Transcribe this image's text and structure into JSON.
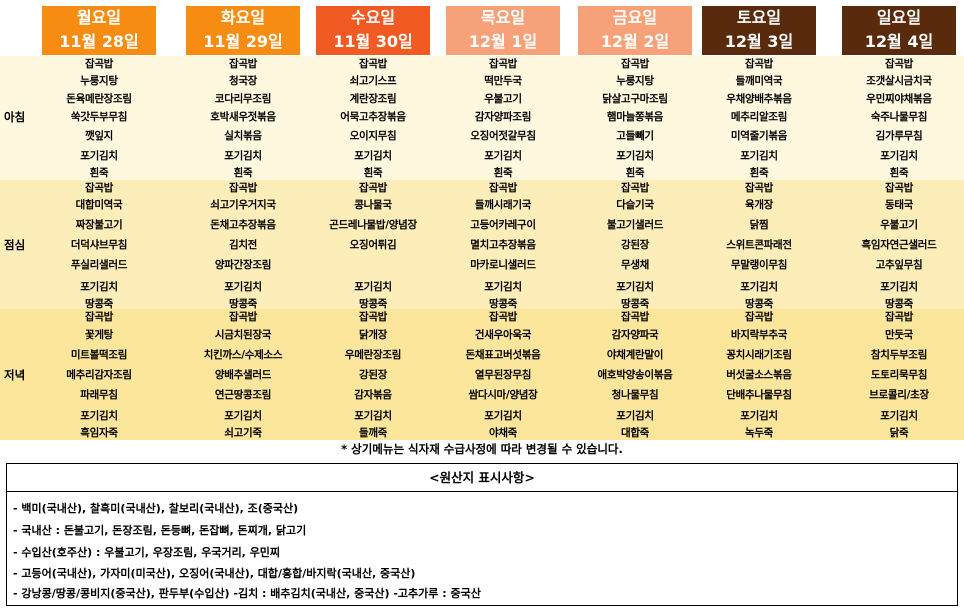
{
  "days": [
    {
      "day": "월요일",
      "date": "11월 28일",
      "color": "#F78C12"
    },
    {
      "day": "화요일",
      "date": "11월 29일",
      "color": "#F78C12"
    },
    {
      "day": "수요일",
      "date": "11월 30일",
      "color": "#F15A22"
    },
    {
      "day": "목요일",
      "date": "12월 1일",
      "color": "#F7A178"
    },
    {
      "day": "금요일",
      "date": "12월 2일",
      "color": "#F7A178"
    },
    {
      "day": "토요일",
      "date": "12월 3일",
      "color": "#5A2A0C"
    },
    {
      "day": "일요일",
      "date": "12월 4일",
      "color": "#5A2A0C"
    }
  ],
  "meals": [
    {
      "label": "아침",
      "color": "#FEF8DF",
      "items": [
        [
          "잡곡밥",
          "누룽지탕",
          "돈육메란장조림",
          "쑥갓두부무침",
          "깻잎지",
          "포기김치",
          "흰죽"
        ],
        [
          "잡곡밥",
          "청국장",
          "코다리무조림",
          "호박새우젓볶음",
          "실치볶음",
          "포기김치",
          "흰죽"
        ],
        [
          "잡곡밥",
          "쇠고기스프",
          "계란장조림",
          "어묵고추장볶음",
          "오이지무침",
          "포기김치",
          "흰죽"
        ],
        [
          "잡곡밥",
          "떡만두국",
          "우불고기",
          "감자양파조림",
          "오징어젓갈무침",
          "포기김치",
          "흰죽"
        ],
        [
          "잡곡밥",
          "누룽지탕",
          "닭살고구마조림",
          "햄마늘쫑볶음",
          "고들빼기",
          "포기김치",
          "흰죽"
        ],
        [
          "잡곡밥",
          "들깨미역국",
          "우채양배추볶음",
          "메추리알조림",
          "미역줄기볶음",
          "포기김치",
          "흰죽"
        ],
        [
          "잡곡밥",
          "조갯살시금치국",
          "우민찌야채볶음",
          "숙주나물무침",
          "김가루무침",
          "포기김치",
          "흰죽"
        ]
      ]
    },
    {
      "label": "점심",
      "color": "#FDEDB9",
      "items": [
        [
          "잡곡밥",
          "대합미역국",
          "짜장불고기",
          "더덕샤브무침",
          "푸실리샐러드",
          "포기김치",
          "땅콩죽"
        ],
        [
          "잡곡밥",
          "쇠고기우거지국",
          "돈채고추장볶음",
          "김치전",
          "양파간장조림",
          "포기김치",
          "땅콩죽"
        ],
        [
          "잡곡밥",
          "콩나물국",
          "곤드레나물밥/양념장",
          "오징어튀김",
          "",
          "포기김치",
          "땅콩죽"
        ],
        [
          "잡곡밥",
          "들깨시래기국",
          "고등어카레구이",
          "멸치고추장볶음",
          "마카로니샐러드",
          "포기김치",
          "땅콩죽"
        ],
        [
          "잡곡밥",
          "다슬기국",
          "불고기샐러드",
          "강된장",
          "무생채",
          "포기김치",
          "땅콩죽"
        ],
        [
          "잡곡밥",
          "육개장",
          "닭찜",
          "스위트콘파래전",
          "무말랭이무침",
          "포기김치",
          "땅콩죽"
        ],
        [
          "잡곡밥",
          "동태국",
          "우불고기",
          "흑임자연근샐러드",
          "고추잎무침",
          "포기김치",
          "땅콩죽"
        ]
      ]
    },
    {
      "label": "저녁",
      "color": "#FCE69C",
      "items": [
        [
          "잡곡밥",
          "꽃게탕",
          "미트볼떡조림",
          "메추리감자조림",
          "파래무침",
          "포기김치",
          "흑임자죽"
        ],
        [
          "잡곡밥",
          "시금치된장국",
          "치킨까스/수제소스",
          "양배추샐러드",
          "연근땅콩조림",
          "포기김치",
          "쇠고기죽"
        ],
        [
          "잡곡밥",
          "닭개장",
          "우메란장조림",
          "강된장",
          "감자볶음",
          "포기김치",
          "들깨죽"
        ],
        [
          "잡곡밥",
          "건새우아욱국",
          "돈채표고버섯볶음",
          "열무된장무침",
          "쌈다시마/양념장",
          "포기김치",
          "야채죽"
        ],
        [
          "잡곡밥",
          "감자양파국",
          "야채계란말이",
          "애호박양송이볶음",
          "청나물무침",
          "포기김치",
          "대합죽"
        ],
        [
          "잡곡밥",
          "바지락부추국",
          "꽁치시래기조림",
          "버섯굴소스볶음",
          "단배추나물무침",
          "포기김치",
          "녹두죽"
        ],
        [
          "잡곡밥",
          "만둣국",
          "참치두부조림",
          "도토리묵무침",
          "브로콜리/초장",
          "포기김치",
          "닭죽"
        ]
      ]
    }
  ],
  "notice": "* 상기메뉴는 식자재 수급사정에 따라 변경될 수 있습니다.",
  "origin": {
    "title": "<원산지 표시사항>",
    "lines": [
      "- 백미(국내산), 찰흑미(국내산), 찰보리(국내산), 조(중국산)",
      "- 국내산 : 돈불고기, 돈장조림, 돈등뼈, 돈잡뼈, 돈찌개, 닭고기",
      "- 수입산(호주산) : 우불고기, 우장조림, 우국거리, 우민찌",
      "- 고등어(국내산), 가자미(미국산), 오징어(국내산), 대합/홍합/바지락(국내산, 중국산)",
      "- 강낭콩/땅콩/콩비지(중국산), 판두부(수입산)   -김치 : 배추김치(국내산, 중국산)   -고추가루 : 중국산"
    ]
  }
}
